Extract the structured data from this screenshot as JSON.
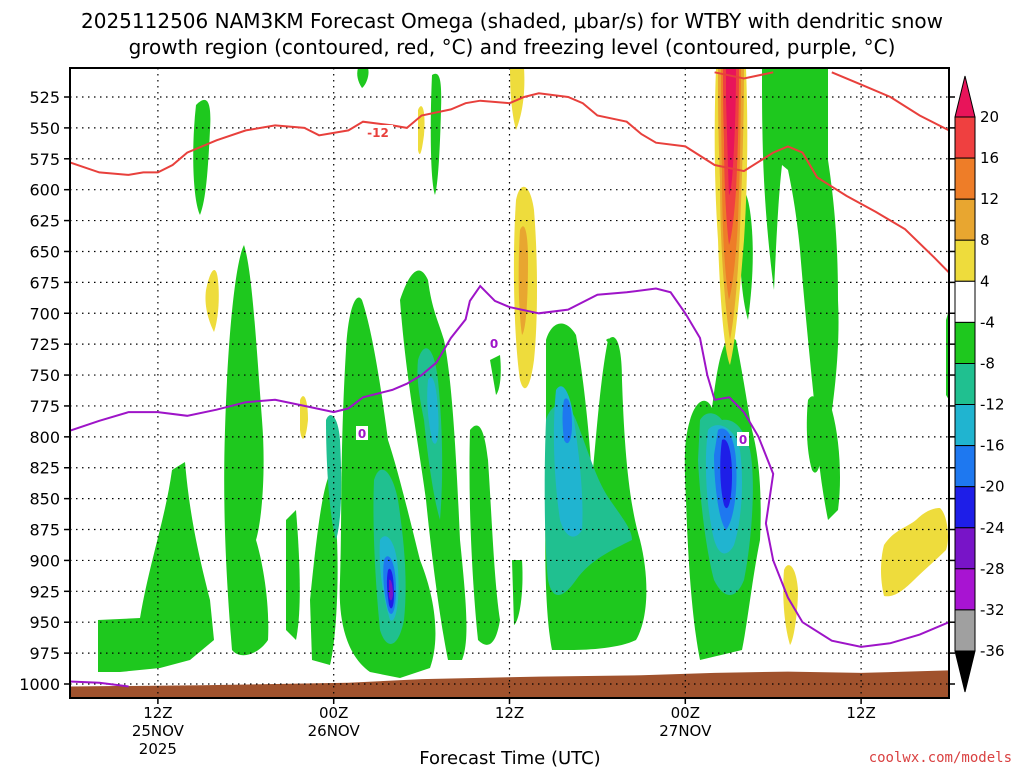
{
  "chart_data": {
    "type": "heatmap",
    "title_line1": "2025112506 NAM3KM Forecast Omega (shaded, μbar/s) for WTBY with dendritic snow",
    "title_line2": "growth region (contoured, red, °C) and freezing level (contoured, purple, °C)",
    "xlabel": "Forecast Time (UTC)",
    "credit": "coolwx.com/models",
    "y_ticks": [
      "525",
      "550",
      "575",
      "600",
      "625",
      "650",
      "675",
      "700",
      "725",
      "750",
      "775",
      "800",
      "825",
      "850",
      "875",
      "900",
      "925",
      "950",
      "975",
      "1000"
    ],
    "y_values": [
      525,
      550,
      575,
      600,
      625,
      650,
      675,
      700,
      725,
      750,
      775,
      800,
      825,
      850,
      875,
      900,
      925,
      950,
      975,
      1000
    ],
    "ylim": [
      505,
      1010
    ],
    "xlim": [
      6,
      66
    ],
    "x_ticks": [
      {
        "hour": 12,
        "lines": [
          "12Z",
          "25NOV",
          "2025"
        ]
      },
      {
        "hour": 24,
        "lines": [
          "00Z",
          "26NOV"
        ]
      },
      {
        "hour": 36,
        "lines": [
          "12Z"
        ]
      },
      {
        "hour": 48,
        "lines": [
          "00Z",
          "27NOV"
        ]
      },
      {
        "hour": 60,
        "lines": [
          "12Z"
        ]
      }
    ],
    "colorbar": {
      "labels": [
        "20",
        "16",
        "12",
        "8",
        "4",
        "-4",
        "-8",
        "-12",
        "-16",
        "-20",
        "-24",
        "-28",
        "-32",
        "-36"
      ],
      "levels": [
        20,
        16,
        12,
        8,
        4,
        -4,
        -8,
        -12,
        -16,
        -20,
        -24,
        -28,
        -32,
        -36
      ],
      "colors": [
        "#e8145a",
        "#ef4040",
        "#ee7d28",
        "#e8a630",
        "#eedc3c",
        "#ffffff",
        "#1ec81e",
        "#20c090",
        "#20b4d0",
        "#1e78f0",
        "#1e1ee8",
        "#7814c8",
        "#a814d2",
        "#a0a0a0",
        "#000000"
      ]
    },
    "contour_labels": {
      "dgz": "-12",
      "freezing": "0"
    },
    "dgz_upper_hPa": [
      [
        6,
        578
      ],
      [
        8,
        586
      ],
      [
        10,
        588
      ],
      [
        11,
        586
      ],
      [
        12,
        586
      ],
      [
        13,
        580
      ],
      [
        14,
        570
      ],
      [
        16,
        560
      ],
      [
        18,
        552
      ],
      [
        20,
        548
      ],
      [
        22,
        550
      ],
      [
        23,
        556
      ],
      [
        25,
        552
      ],
      [
        26,
        545
      ],
      [
        28,
        548
      ],
      [
        29,
        550
      ],
      [
        30,
        540
      ],
      [
        32,
        535
      ],
      [
        33,
        530
      ],
      [
        34,
        528
      ],
      [
        36,
        530
      ],
      [
        37,
        525
      ],
      [
        38,
        522
      ],
      [
        40,
        525
      ],
      [
        41,
        530
      ],
      [
        42,
        540
      ],
      [
        44,
        545
      ],
      [
        45,
        555
      ],
      [
        46,
        562
      ],
      [
        48,
        565
      ],
      [
        50,
        580
      ],
      [
        52,
        585
      ],
      [
        54,
        570
      ],
      [
        55,
        565
      ],
      [
        56,
        570
      ],
      [
        57,
        590
      ],
      [
        59,
        605
      ],
      [
        61,
        618
      ],
      [
        63,
        632
      ],
      [
        65,
        655
      ],
      [
        66,
        667
      ]
    ],
    "dgz_top_hPa": [
      [
        50,
        505
      ],
      [
        52,
        510
      ],
      [
        54,
        505
      ]
    ],
    "dgz_right_hPa": [
      [
        58,
        505
      ],
      [
        60,
        515
      ],
      [
        62,
        525
      ],
      [
        64,
        540
      ],
      [
        66,
        552
      ]
    ],
    "freezing_hPa": [
      [
        6,
        795
      ],
      [
        8,
        787
      ],
      [
        10,
        780
      ],
      [
        12,
        780
      ],
      [
        14,
        783
      ],
      [
        16,
        778
      ],
      [
        18,
        772
      ],
      [
        20,
        770
      ],
      [
        22,
        775
      ],
      [
        24,
        780
      ],
      [
        25,
        777
      ],
      [
        26,
        768
      ],
      [
        27,
        765
      ],
      [
        28,
        762
      ],
      [
        29,
        757
      ],
      [
        30,
        750
      ],
      [
        31,
        740
      ],
      [
        32,
        720
      ],
      [
        33,
        705
      ],
      [
        33.3,
        690
      ],
      [
        34,
        678
      ],
      [
        35,
        690
      ],
      [
        36,
        695
      ],
      [
        38,
        700
      ],
      [
        40,
        697
      ],
      [
        42,
        685
      ],
      [
        44,
        683
      ],
      [
        46,
        680
      ],
      [
        47,
        683
      ],
      [
        48,
        700
      ],
      [
        49,
        720
      ],
      [
        49.5,
        750
      ],
      [
        50,
        770
      ],
      [
        51,
        768
      ],
      [
        52,
        780
      ],
      [
        53,
        800
      ],
      [
        54,
        830
      ],
      [
        53.5,
        870
      ],
      [
        54,
        900
      ],
      [
        55,
        930
      ],
      [
        56,
        950
      ],
      [
        58,
        965
      ],
      [
        60,
        970
      ],
      [
        62,
        967
      ],
      [
        64,
        960
      ],
      [
        66,
        950
      ]
    ],
    "freezing_low_hPa": [
      [
        6,
        998
      ],
      [
        8,
        999
      ],
      [
        10,
        1002
      ]
    ],
    "terrain_top_hPa": [
      [
        6,
        1002
      ],
      [
        15,
        1001
      ],
      [
        25,
        999
      ],
      [
        30,
        996
      ],
      [
        38,
        994
      ],
      [
        45,
        993
      ],
      [
        50,
        991
      ],
      [
        55,
        990
      ],
      [
        60,
        991
      ],
      [
        66,
        989
      ]
    ]
  }
}
